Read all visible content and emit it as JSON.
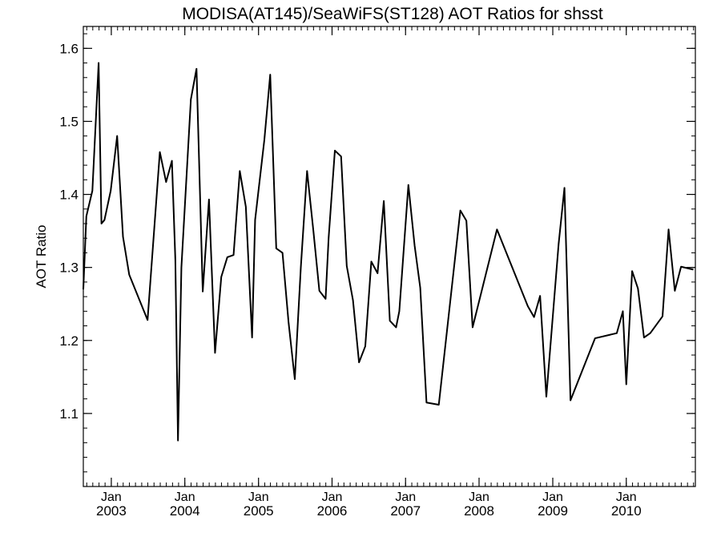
{
  "chart_data": {
    "type": "line",
    "title": "MODISA(AT145)/SeaWiFS(ST128)  AOT Ratios for shsst",
    "xlabel": "",
    "ylabel": "AOT Ratio",
    "xlim": [
      "2002-08-15",
      "2010-12-10"
    ],
    "ylim": [
      1.0,
      1.63
    ],
    "y_ticks": [
      "1.1",
      "1.2",
      "1.3",
      "1.4",
      "1.5",
      "1.6"
    ],
    "y_tick_values": [
      1.1,
      1.2,
      1.3,
      1.4,
      1.5,
      1.6
    ],
    "x_ticks": [
      {
        "date": "2003-01-01",
        "month": "Jan",
        "year": "2003"
      },
      {
        "date": "2004-01-01",
        "month": "Jan",
        "year": "2004"
      },
      {
        "date": "2005-01-01",
        "month": "Jan",
        "year": "2005"
      },
      {
        "date": "2006-01-01",
        "month": "Jan",
        "year": "2006"
      },
      {
        "date": "2007-01-01",
        "month": "Jan",
        "year": "2007"
      },
      {
        "date": "2008-01-01",
        "month": "Jan",
        "year": "2008"
      },
      {
        "date": "2009-01-01",
        "month": "Jan",
        "year": "2009"
      },
      {
        "date": "2010-01-01",
        "month": "Jan",
        "year": "2010"
      }
    ],
    "grid": false,
    "series": [
      {
        "color": "#000000",
        "points": [
          [
            "2002-08-15",
            1.27
          ],
          [
            "2002-08-30",
            1.37
          ],
          [
            "2002-09-29",
            1.405
          ],
          [
            "2002-10-30",
            1.58
          ],
          [
            "2002-11-13",
            1.36
          ],
          [
            "2002-11-28",
            1.365
          ],
          [
            "2002-12-29",
            1.405
          ],
          [
            "2003-01-30",
            1.48
          ],
          [
            "2003-02-28",
            1.342
          ],
          [
            "2003-03-31",
            1.29
          ],
          [
            "2003-06-30",
            1.228
          ],
          [
            "2003-08-30",
            1.458
          ],
          [
            "2003-09-30",
            1.417
          ],
          [
            "2003-10-29",
            1.446
          ],
          [
            "2003-11-15",
            1.31
          ],
          [
            "2003-11-28",
            1.063
          ],
          [
            "2003-12-15",
            1.3
          ],
          [
            "2004-01-31",
            1.53
          ],
          [
            "2004-02-28",
            1.572
          ],
          [
            "2004-03-30",
            1.267
          ],
          [
            "2004-04-30",
            1.393
          ],
          [
            "2004-05-30",
            1.183
          ],
          [
            "2004-06-30",
            1.287
          ],
          [
            "2004-07-30",
            1.314
          ],
          [
            "2004-08-30",
            1.317
          ],
          [
            "2004-09-30",
            1.432
          ],
          [
            "2004-10-30",
            1.383
          ],
          [
            "2004-11-30",
            1.204
          ],
          [
            "2004-12-15",
            1.365
          ],
          [
            "2005-01-30",
            1.475
          ],
          [
            "2005-02-28",
            1.564
          ],
          [
            "2005-03-30",
            1.326
          ],
          [
            "2005-04-30",
            1.32
          ],
          [
            "2005-05-30",
            1.225
          ],
          [
            "2005-06-30",
            1.147
          ],
          [
            "2005-07-30",
            1.3
          ],
          [
            "2005-08-30",
            1.432
          ],
          [
            "2005-09-30",
            1.351
          ],
          [
            "2005-10-30",
            1.268
          ],
          [
            "2005-11-30",
            1.257
          ],
          [
            "2005-12-15",
            1.34
          ],
          [
            "2006-01-15",
            1.46
          ],
          [
            "2006-02-15",
            1.452
          ],
          [
            "2006-03-15",
            1.302
          ],
          [
            "2006-04-15",
            1.255
          ],
          [
            "2006-05-15",
            1.17
          ],
          [
            "2006-06-15",
            1.192
          ],
          [
            "2006-07-15",
            1.308
          ],
          [
            "2006-08-15",
            1.292
          ],
          [
            "2006-09-15",
            1.391
          ],
          [
            "2006-10-15",
            1.227
          ],
          [
            "2006-11-15",
            1.218
          ],
          [
            "2006-12-01",
            1.24
          ],
          [
            "2007-01-15",
            1.413
          ],
          [
            "2007-02-15",
            1.33
          ],
          [
            "2007-03-15",
            1.272
          ],
          [
            "2007-04-15",
            1.115
          ],
          [
            "2007-06-15",
            1.112
          ],
          [
            "2007-09-30",
            1.378
          ],
          [
            "2007-10-30",
            1.364
          ],
          [
            "2007-11-30",
            1.218
          ],
          [
            "2008-03-30",
            1.352
          ],
          [
            "2008-08-30",
            1.247
          ],
          [
            "2008-09-30",
            1.232
          ],
          [
            "2008-10-30",
            1.261
          ],
          [
            "2008-11-30",
            1.123
          ],
          [
            "2009-01-30",
            1.332
          ],
          [
            "2009-02-28",
            1.409
          ],
          [
            "2009-03-30",
            1.118
          ],
          [
            "2009-07-30",
            1.203
          ],
          [
            "2009-11-15",
            1.21
          ],
          [
            "2009-12-15",
            1.24
          ],
          [
            "2010-01-01",
            1.14
          ],
          [
            "2010-01-30",
            1.295
          ],
          [
            "2010-02-28",
            1.271
          ],
          [
            "2010-03-30",
            1.204
          ],
          [
            "2010-04-30",
            1.21
          ],
          [
            "2010-06-30",
            1.233
          ],
          [
            "2010-07-30",
            1.352
          ],
          [
            "2010-08-30",
            1.268
          ],
          [
            "2010-09-30",
            1.301
          ],
          [
            "2010-11-30",
            1.297
          ]
        ]
      }
    ]
  }
}
